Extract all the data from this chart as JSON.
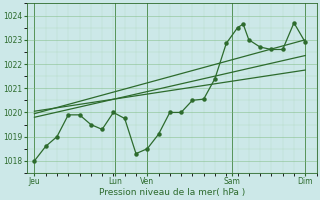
{
  "bg_color": "#cce8e8",
  "line_color": "#2d6b2d",
  "grid_color_major": "#7ab87a",
  "grid_color_minor": "#99cc99",
  "xlabel": "Pression niveau de la mer( hPa )",
  "ylim": [
    1017.5,
    1024.5
  ],
  "xlim": [
    -0.2,
    7.5
  ],
  "main_x": [
    0.0,
    0.3,
    0.6,
    0.9,
    1.2,
    1.5,
    1.8,
    2.1,
    2.4,
    2.7,
    3.0,
    3.3,
    3.6,
    3.9,
    4.2,
    4.5,
    4.8,
    5.1,
    5.4,
    5.55,
    5.7,
    6.0,
    6.3,
    6.6,
    6.9,
    7.2
  ],
  "main_y": [
    1018.0,
    1018.6,
    1019.0,
    1019.9,
    1019.9,
    1019.5,
    1019.3,
    1020.0,
    1019.75,
    1018.3,
    1018.5,
    1019.1,
    1020.0,
    1020.0,
    1020.5,
    1020.55,
    1021.4,
    1022.85,
    1023.5,
    1023.65,
    1023.0,
    1022.7,
    1022.6,
    1022.6,
    1023.7,
    1022.9
  ],
  "trend1_x": [
    0.0,
    7.2
  ],
  "trend1_y": [
    1019.8,
    1022.35
  ],
  "trend2_x": [
    0.0,
    7.2
  ],
  "trend2_y": [
    1019.95,
    1023.0
  ],
  "trend3_x": [
    0.0,
    7.2
  ],
  "trend3_y": [
    1020.05,
    1021.75
  ],
  "day_vlines": [
    0.0,
    2.15,
    3.0,
    5.25,
    7.2
  ],
  "xtick_positions": [
    0.0,
    2.15,
    3.0,
    5.25,
    7.2
  ],
  "xtick_labels": [
    "Jeu",
    "Lun",
    "Ven",
    "Sam",
    "Dim"
  ]
}
